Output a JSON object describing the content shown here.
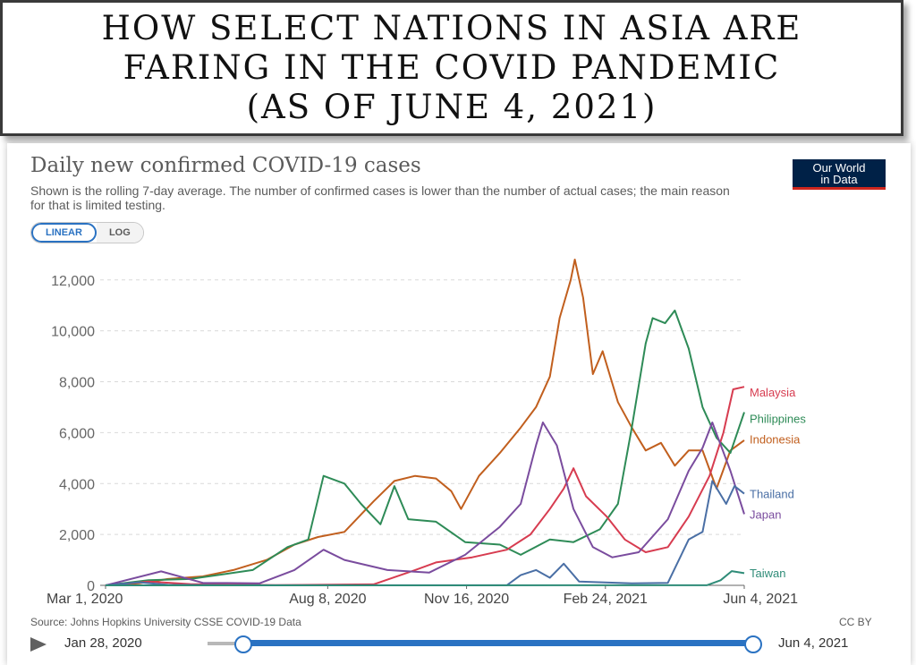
{
  "banner": {
    "title": "HOW SELECT NATIONS IN ASIA ARE\nFARING IN THE COVID PANDEMIC\n(AS OF JUNE 4, 2021)"
  },
  "chart_data": {
    "type": "line",
    "title": "Daily new confirmed COVID-19 cases",
    "subtitle": "Shown is the rolling 7-day average. The number of confirmed cases is lower than the number of actual cases; the main reason for that is limited testing.",
    "xlabel": "",
    "ylabel": "",
    "x_range": [
      "2020-03-01",
      "2021-06-04"
    ],
    "ylim": [
      0,
      12800
    ],
    "y_ticks": [
      0,
      2000,
      4000,
      6000,
      8000,
      10000,
      12000
    ],
    "y_tick_labels": [
      "0",
      "2,000",
      "4,000",
      "6,000",
      "8,000",
      "10,000",
      "12,000"
    ],
    "x_ticks": [
      "2020-03-01",
      "2020-08-08",
      "2020-11-16",
      "2021-02-24",
      "2021-06-04"
    ],
    "x_tick_labels": [
      "Mar 1, 2020",
      "Aug 8, 2020",
      "Nov 16, 2020",
      "Feb 24, 2021",
      "Jun 4, 2021"
    ],
    "grid": "horizontal-dashed",
    "legend": "line-end labels",
    "scale_options": [
      "LINEAR",
      "LOG"
    ],
    "scale_selected": "LINEAR",
    "series": [
      {
        "name": "Indonesia",
        "color": "#c15f1e",
        "label_y": 5750,
        "points": [
          [
            "2020-03-01",
            0
          ],
          [
            "2020-03-25",
            80
          ],
          [
            "2020-04-15",
            250
          ],
          [
            "2020-05-10",
            350
          ],
          [
            "2020-06-01",
            600
          ],
          [
            "2020-06-25",
            1000
          ],
          [
            "2020-07-15",
            1600
          ],
          [
            "2020-08-01",
            1900
          ],
          [
            "2020-08-20",
            2100
          ],
          [
            "2020-09-10",
            3300
          ],
          [
            "2020-09-25",
            4100
          ],
          [
            "2020-10-10",
            4300
          ],
          [
            "2020-10-25",
            4200
          ],
          [
            "2020-11-05",
            3700
          ],
          [
            "2020-11-12",
            3000
          ],
          [
            "2020-11-25",
            4300
          ],
          [
            "2020-12-10",
            5200
          ],
          [
            "2020-12-25",
            6200
          ],
          [
            "2021-01-05",
            7000
          ],
          [
            "2021-01-15",
            8200
          ],
          [
            "2021-01-22",
            10500
          ],
          [
            "2021-01-30",
            12000
          ],
          [
            "2021-02-02",
            12800
          ],
          [
            "2021-02-08",
            11300
          ],
          [
            "2021-02-15",
            8300
          ],
          [
            "2021-02-22",
            9200
          ],
          [
            "2021-03-05",
            7200
          ],
          [
            "2021-03-15",
            6200
          ],
          [
            "2021-03-25",
            5300
          ],
          [
            "2021-04-05",
            5600
          ],
          [
            "2021-04-15",
            4700
          ],
          [
            "2021-04-25",
            5300
          ],
          [
            "2021-05-05",
            5300
          ],
          [
            "2021-05-15",
            3800
          ],
          [
            "2021-05-25",
            5300
          ],
          [
            "2021-06-04",
            5700
          ]
        ]
      },
      {
        "name": "Philippines",
        "color": "#2e8b57",
        "label_y": 6550,
        "points": [
          [
            "2020-03-01",
            0
          ],
          [
            "2020-04-01",
            200
          ],
          [
            "2020-05-01",
            250
          ],
          [
            "2020-06-15",
            600
          ],
          [
            "2020-07-10",
            1500
          ],
          [
            "2020-07-25",
            1800
          ],
          [
            "2020-08-05",
            4300
          ],
          [
            "2020-08-20",
            4000
          ],
          [
            "2020-09-01",
            3200
          ],
          [
            "2020-09-15",
            2400
          ],
          [
            "2020-09-25",
            3900
          ],
          [
            "2020-10-05",
            2600
          ],
          [
            "2020-10-25",
            2500
          ],
          [
            "2020-11-15",
            1700
          ],
          [
            "2020-12-10",
            1600
          ],
          [
            "2020-12-25",
            1200
          ],
          [
            "2021-01-15",
            1800
          ],
          [
            "2021-02-01",
            1700
          ],
          [
            "2021-02-20",
            2200
          ],
          [
            "2021-03-05",
            3200
          ],
          [
            "2021-03-15",
            6200
          ],
          [
            "2021-03-25",
            9500
          ],
          [
            "2021-03-30",
            10500
          ],
          [
            "2021-04-08",
            10300
          ],
          [
            "2021-04-15",
            10800
          ],
          [
            "2021-04-25",
            9300
          ],
          [
            "2021-05-05",
            7000
          ],
          [
            "2021-05-15",
            5800
          ],
          [
            "2021-05-25",
            5200
          ],
          [
            "2021-06-04",
            6800
          ]
        ]
      },
      {
        "name": "Malaysia",
        "color": "#d73c50",
        "label_y": 7600,
        "points": [
          [
            "2020-03-01",
            0
          ],
          [
            "2020-04-01",
            150
          ],
          [
            "2020-05-01",
            50
          ],
          [
            "2020-07-01",
            10
          ],
          [
            "2020-09-10",
            40
          ],
          [
            "2020-10-10",
            600
          ],
          [
            "2020-10-25",
            900
          ],
          [
            "2020-11-20",
            1100
          ],
          [
            "2020-12-15",
            1400
          ],
          [
            "2021-01-01",
            2000
          ],
          [
            "2021-01-15",
            3000
          ],
          [
            "2021-01-25",
            3800
          ],
          [
            "2021-02-01",
            4600
          ],
          [
            "2021-02-10",
            3500
          ],
          [
            "2021-02-25",
            2700
          ],
          [
            "2021-03-10",
            1800
          ],
          [
            "2021-03-25",
            1300
          ],
          [
            "2021-04-10",
            1500
          ],
          [
            "2021-04-25",
            2700
          ],
          [
            "2021-05-10",
            4300
          ],
          [
            "2021-05-20",
            6000
          ],
          [
            "2021-05-27",
            7700
          ],
          [
            "2021-06-04",
            7800
          ]
        ]
      },
      {
        "name": "Japan",
        "color": "#7a4c9e",
        "label_y": 2800,
        "points": [
          [
            "2020-03-01",
            0
          ],
          [
            "2020-04-10",
            550
          ],
          [
            "2020-05-10",
            100
          ],
          [
            "2020-06-20",
            80
          ],
          [
            "2020-07-15",
            600
          ],
          [
            "2020-08-05",
            1400
          ],
          [
            "2020-08-20",
            1000
          ],
          [
            "2020-09-20",
            600
          ],
          [
            "2020-10-20",
            500
          ],
          [
            "2020-11-15",
            1200
          ],
          [
            "2020-12-10",
            2300
          ],
          [
            "2020-12-25",
            3200
          ],
          [
            "2021-01-05",
            5500
          ],
          [
            "2021-01-10",
            6400
          ],
          [
            "2021-01-20",
            5500
          ],
          [
            "2021-02-01",
            3000
          ],
          [
            "2021-02-15",
            1500
          ],
          [
            "2021-03-01",
            1100
          ],
          [
            "2021-03-20",
            1300
          ],
          [
            "2021-04-10",
            2600
          ],
          [
            "2021-04-25",
            4500
          ],
          [
            "2021-05-05",
            5400
          ],
          [
            "2021-05-12",
            6400
          ],
          [
            "2021-05-25",
            4500
          ],
          [
            "2021-06-04",
            2800
          ]
        ]
      },
      {
        "name": "Thailand",
        "color": "#4a6fa5",
        "label_y": 3600,
        "points": [
          [
            "2020-03-01",
            0
          ],
          [
            "2020-03-25",
            120
          ],
          [
            "2020-04-15",
            20
          ],
          [
            "2020-06-01",
            5
          ],
          [
            "2020-12-15",
            5
          ],
          [
            "2020-12-25",
            400
          ],
          [
            "2021-01-05",
            600
          ],
          [
            "2021-01-15",
            300
          ],
          [
            "2021-01-25",
            850
          ],
          [
            "2021-02-05",
            150
          ],
          [
            "2021-03-15",
            80
          ],
          [
            "2021-04-10",
            100
          ],
          [
            "2021-04-25",
            1800
          ],
          [
            "2021-05-05",
            2100
          ],
          [
            "2021-05-12",
            4100
          ],
          [
            "2021-05-22",
            3200
          ],
          [
            "2021-05-28",
            3900
          ],
          [
            "2021-06-04",
            3600
          ]
        ]
      },
      {
        "name": "Taiwan",
        "color": "#2f8c78",
        "label_y": 500,
        "points": [
          [
            "2020-03-01",
            0
          ],
          [
            "2021-05-08",
            5
          ],
          [
            "2021-05-18",
            200
          ],
          [
            "2021-05-26",
            560
          ],
          [
            "2021-06-04",
            480
          ]
        ]
      }
    ]
  },
  "source": "Source: Johns Hopkins University CSSE COVID-19 Data",
  "license": "CC BY",
  "logo": {
    "line1": "Our World",
    "line2": "in Data"
  },
  "timeline": {
    "start": "Jan 28, 2020",
    "end": "Jun 4, 2021"
  }
}
